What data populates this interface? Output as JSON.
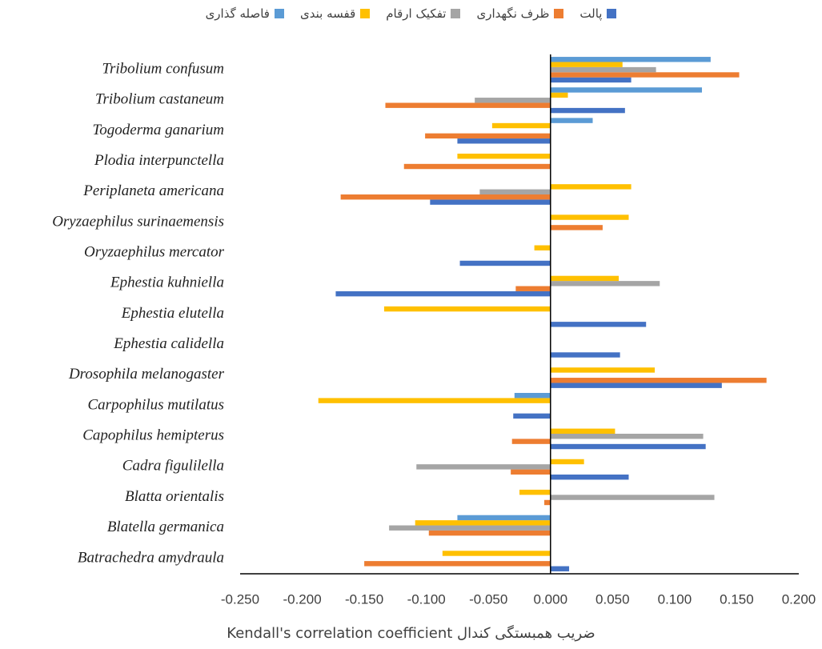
{
  "chart_data": {
    "type": "hbar",
    "x_label": "ضریب همبستگی کندال Kendall's correlation coefficient",
    "categories": [
      "Tribolium confusum",
      "Tribolium castaneum",
      "Togoderma ganarium",
      "Plodia interpunctella",
      "Periplaneta americana",
      "Oryzaephilus surinaemensis",
      "Oryzaephilus mercator",
      "Ephestia kuhniella",
      "Ephestia elutella",
      "Ephestia calidella",
      "Drosophila melanogaster",
      "Carpophilus mutilatus",
      "Capophilus hemipterus",
      "Cadra figulilella",
      "Blatta orientalis",
      "Blatella germanica",
      "Batrachedra amydraula"
    ],
    "series": [
      {
        "name": "پالت",
        "color": "#4472c4",
        "values": [
          0.065,
          0.06,
          -0.075,
          null,
          -0.097,
          null,
          -0.073,
          -0.173,
          0.077,
          0.056,
          0.138,
          -0.03,
          0.125,
          0.063,
          null,
          null,
          0.015
        ]
      },
      {
        "name": "ظرف نگهداری",
        "color": "#ed7d31",
        "values": [
          0.152,
          -0.133,
          -0.101,
          -0.118,
          -0.169,
          0.042,
          null,
          -0.028,
          null,
          null,
          0.174,
          null,
          -0.031,
          -0.032,
          -0.005,
          -0.098,
          -0.15
        ]
      },
      {
        "name": "تفکیک ارقام",
        "color": "#a5a5a5",
        "values": [
          0.085,
          -0.061,
          null,
          null,
          -0.057,
          null,
          null,
          0.088,
          null,
          null,
          null,
          null,
          0.123,
          -0.108,
          0.132,
          -0.13,
          null
        ]
      },
      {
        "name": "قفسه بندی",
        "color": "#ffc000",
        "values": [
          0.058,
          0.014,
          -0.047,
          -0.075,
          0.065,
          0.063,
          -0.013,
          0.055,
          -0.134,
          null,
          0.084,
          -0.187,
          0.052,
          0.027,
          -0.025,
          -0.109,
          -0.087
        ]
      },
      {
        "name": "فاصله گذاری",
        "color": "#5b9bd5",
        "values": [
          0.129,
          0.122,
          0.034,
          null,
          null,
          null,
          null,
          null,
          null,
          null,
          null,
          -0.029,
          null,
          null,
          null,
          -0.075,
          null
        ]
      }
    ],
    "xlim": [
      -0.25,
      0.2
    ],
    "xticks": [
      {
        "value": -0.25,
        "label": "-0.250"
      },
      {
        "value": -0.2,
        "label": "-0.200"
      },
      {
        "value": -0.15,
        "label": "-0.150"
      },
      {
        "value": -0.1,
        "label": "-0.100"
      },
      {
        "value": -0.05,
        "label": "-0.050"
      },
      {
        "value": 0,
        "label": "0.000"
      },
      {
        "value": 0.05,
        "label": "0.050"
      },
      {
        "value": 0.1,
        "label": "0.100"
      },
      {
        "value": 0.15,
        "label": "0.150"
      },
      {
        "value": 0.2,
        "label": "0.200"
      }
    ],
    "legend": "top",
    "grid": false
  }
}
